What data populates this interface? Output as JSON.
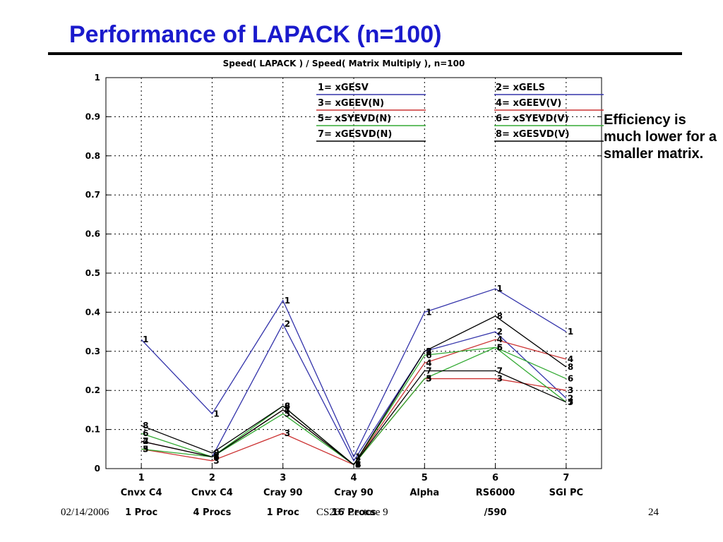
{
  "slide": {
    "title": "Performance of LAPACK (n=100)",
    "side_note": "Efficiency is much lower for a smaller matrix.",
    "footer_date": "02/14/2006",
    "footer_course": "CS267 Lecture 9",
    "footer_page": "24"
  },
  "chart_data": {
    "type": "line",
    "title": "Speed( LAPACK ) / Speed( Matrix Multiply ), n=100",
    "x": [
      1,
      2,
      3,
      4,
      5,
      6,
      7
    ],
    "x_tick_labels": [
      "1",
      "2",
      "3",
      "4",
      "5",
      "6",
      "7"
    ],
    "x_category_line1": [
      "Cnvx C4",
      "Cnvx C4",
      "Cray 90",
      "Cray 90",
      "Alpha",
      "RS6000",
      "SGI PC"
    ],
    "x_category_line2": [
      "1 Proc",
      "4 Procs",
      "1 Proc",
      "16 Procs",
      "",
      "/590",
      ""
    ],
    "ylim": [
      0,
      1
    ],
    "y_ticks": [
      "0",
      "0.1",
      "0.2",
      "0.3",
      "0.4",
      "0.5",
      "0.6",
      "0.7",
      "0.8",
      "0.9",
      "1"
    ],
    "grid": true,
    "legend_position": "top-right",
    "series": [
      {
        "name": "1= xGESV",
        "label": "1",
        "color": "#3333aa",
        "values": [
          0.33,
          0.14,
          0.43,
          0.03,
          0.4,
          0.46,
          0.35
        ]
      },
      {
        "name": "2= xGELS",
        "label": "2",
        "color": "#3333aa",
        "values": [
          0.07,
          0.03,
          0.37,
          0.02,
          0.3,
          0.35,
          0.18
        ]
      },
      {
        "name": "3= xGEEV(N)",
        "label": "3",
        "color": "#cc3333",
        "values": [
          0.05,
          0.02,
          0.09,
          0.01,
          0.23,
          0.23,
          0.2
        ]
      },
      {
        "name": "4= xGEEV(V)",
        "label": "4",
        "color": "#cc3333",
        "values": [
          0.07,
          0.03,
          0.15,
          0.01,
          0.27,
          0.33,
          0.28
        ]
      },
      {
        "name": "5= xSYEVD(N)",
        "label": "5",
        "color": "#33aa33",
        "values": [
          0.05,
          0.03,
          0.14,
          0.01,
          0.23,
          0.31,
          0.17
        ]
      },
      {
        "name": "6= xSYEVD(V)",
        "label": "6",
        "color": "#33aa33",
        "values": [
          0.09,
          0.03,
          0.16,
          0.01,
          0.29,
          0.31,
          0.23
        ]
      },
      {
        "name": "7= xGESVD(N)",
        "label": "7",
        "color": "#000000",
        "values": [
          0.07,
          0.03,
          0.15,
          0.01,
          0.25,
          0.25,
          0.17
        ]
      },
      {
        "name": "8= xGESVD(V)",
        "label": "8",
        "color": "#000000",
        "values": [
          0.11,
          0.04,
          0.16,
          0.01,
          0.3,
          0.39,
          0.26
        ]
      }
    ]
  }
}
